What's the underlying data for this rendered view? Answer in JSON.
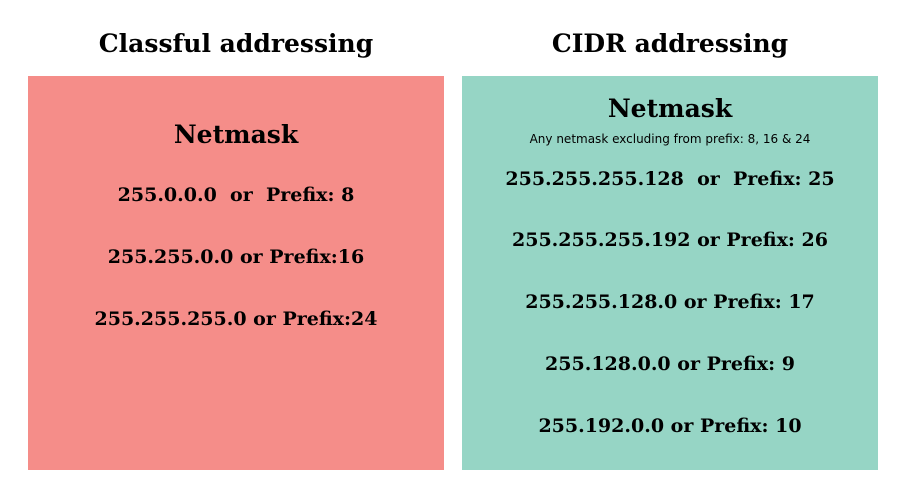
{
  "classful": {
    "title": "Classful addressing",
    "heading": "Netmask",
    "entries": [
      "255.0.0.0  or  Prefix: 8",
      "255.255.0.0 or Prefix:16",
      "255.255.255.0 or Prefix:24"
    ],
    "panel_color": "#f58d89"
  },
  "cidr": {
    "title": "CIDR addressing",
    "heading": "Netmask",
    "note": "Any netmask excluding from prefix: 8, 16 & 24",
    "entries": [
      "255.255.255.128  or  Prefix: 25",
      "255.255.255.192 or Prefix: 26",
      "255.255.128.0 or Prefix: 17",
      "255.128.0.0 or Prefix: 9",
      "255.192.0.0 or Prefix: 10"
    ],
    "panel_color": "#96d5c5"
  }
}
